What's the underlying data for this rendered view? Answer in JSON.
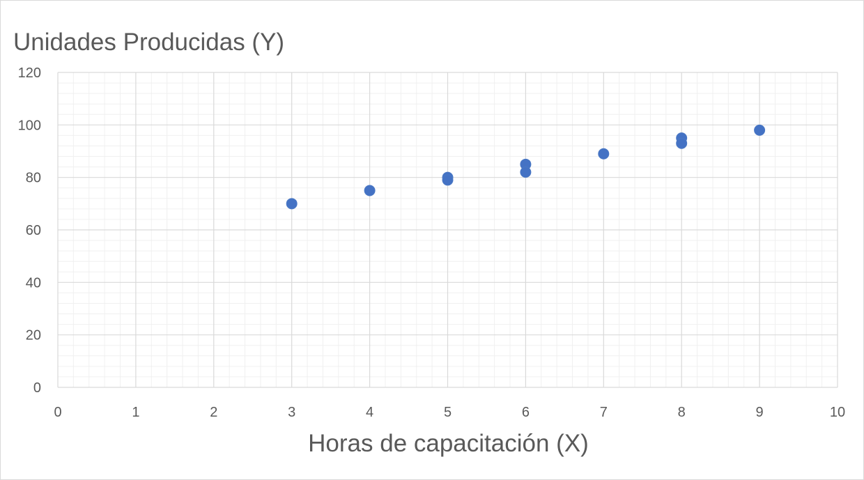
{
  "chart_data": {
    "type": "scatter",
    "title": "Unidades Producidas (Y)",
    "xlabel": "Horas de capacitación (X)",
    "ylabel": "",
    "xlim": [
      0,
      10
    ],
    "ylim": [
      0,
      120
    ],
    "x_ticks": [
      "0",
      "1",
      "2",
      "3",
      "4",
      "5",
      "6",
      "7",
      "8",
      "9",
      "10"
    ],
    "y_ticks": [
      "0",
      "20",
      "40",
      "60",
      "80",
      "100",
      "120"
    ],
    "grid": "major and minor",
    "legend": "none",
    "marker_color": "#4472C4",
    "series": [
      {
        "points": [
          {
            "x": 3,
            "y": 70
          },
          {
            "x": 4,
            "y": 75
          },
          {
            "x": 5,
            "y": 80
          },
          {
            "x": 5,
            "y": 79
          },
          {
            "x": 6,
            "y": 85
          },
          {
            "x": 6,
            "y": 82
          },
          {
            "x": 7,
            "y": 89
          },
          {
            "x": 8,
            "y": 95
          },
          {
            "x": 8,
            "y": 93
          },
          {
            "x": 9,
            "y": 98
          }
        ]
      }
    ]
  }
}
